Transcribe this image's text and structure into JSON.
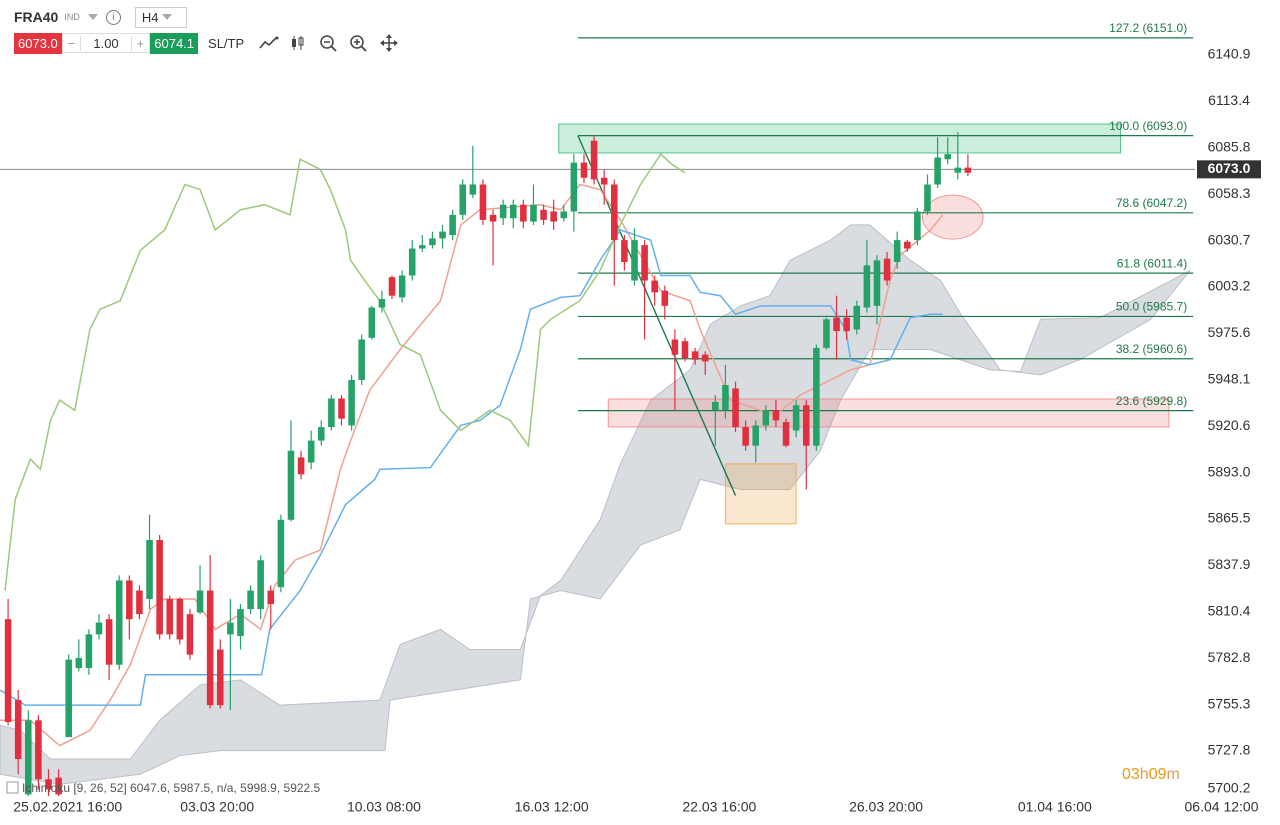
{
  "toolbar": {
    "symbol": "FRA40",
    "market": "IND",
    "timeframe": "H4",
    "sell": "6073.0",
    "volume": "1.00",
    "buy": "6074.1",
    "sltp": "SL/TP"
  },
  "legend": "Ichimoku [9, 26, 52] 6047.6, 5987.5, n/a, 5998.9, 5922.5",
  "timer": [
    "03",
    "h",
    "09",
    "m"
  ],
  "chart_data": {
    "type": "candlestick",
    "xlim": [
      -0.8,
      124.9
    ],
    "ylim": [
      5698.7,
      6173.5
    ],
    "xticks": [
      {
        "value": 5.9,
        "label": "25.02.2021 16:00"
      },
      {
        "value": 20.7,
        "label": "03.03 20:00"
      },
      {
        "value": 37.2,
        "label": "10.03 08:00"
      },
      {
        "value": 53.8,
        "label": "16.03 12:00"
      },
      {
        "value": 70.4,
        "label": "22.03 16:00"
      },
      {
        "value": 86.9,
        "label": "26.03 20:00"
      },
      {
        "value": 103.6,
        "label": "01.04 16:00"
      },
      {
        "value": 120.1,
        "label": "06.04 12:00"
      }
    ],
    "yticks": [
      5700.2,
      5727.8,
      5755.3,
      5782.8,
      5810.4,
      5837.9,
      5865.5,
      {
        "value": 5893,
        "label": "5893.0"
      },
      5920.6,
      5948.1,
      5975.6,
      6003.2,
      6030.7,
      6058.3,
      6085.8,
      6113.4,
      6140.9
    ],
    "up_color": "#26a269",
    "down_color": "#e0303f",
    "open": [
      5806,
      5758,
      5702,
      5746,
      5711,
      5712,
      5736,
      5777,
      5777,
      5797,
      5806,
      5779,
      5829,
      5823,
      5818,
      5853,
      5818,
      5818,
      5809,
      5810,
      5823,
      5788,
      5797,
      5796,
      5812,
      5812,
      5823,
      5825,
      5865,
      5902,
      5899,
      5912,
      5920,
      5937,
      5921,
      5948,
      5973,
      5991,
      6009,
      5997,
      6010,
      6026,
      6028,
      6032,
      6034,
      6046,
      6058,
      6064,
      6046,
      6044,
      6044,
      6052,
      6042,
      6049,
      6048,
      6044,
      6048,
      6077,
      6090,
      6068,
      6064,
      6031,
      6007,
      6028,
      6007,
      6001,
      5972,
      5971,
      5965,
      5963,
      5930,
      5930,
      5943,
      5920,
      5909,
      5921,
      5930,
      5923,
      5918,
      5933,
      5909,
      5967,
      5985,
      5985,
      5978,
      5991,
      5992,
      6020,
      6018,
      6030,
      6031,
      6048,
      6064,
      6079,
      6071,
      6074
    ],
    "high": [
      5818,
      5764,
      5752,
      5749,
      5717,
      5717,
      5785,
      5794,
      5800,
      5809,
      5809,
      5832,
      5832,
      5826,
      5868,
      5856,
      5820,
      5819,
      5812,
      5838,
      5844,
      5794,
      5818,
      5815,
      5826,
      5844,
      5826,
      5868,
      5924,
      5906,
      5918,
      5924,
      5939,
      5939,
      5951,
      5975,
      5992,
      6001,
      6010,
      6013,
      6031,
      6034,
      6036,
      6040,
      6049,
      6067,
      6087,
      6067,
      6049,
      6055,
      6055,
      6055,
      6064,
      6052,
      6055,
      6052,
      6082,
      6082,
      6093,
      6073,
      6067,
      6034,
      6038,
      6031,
      6010,
      6004,
      5978,
      5973,
      5967,
      5965,
      5939,
      5957,
      5947,
      5924,
      5924,
      5933,
      5936,
      5925,
      5936,
      5936,
      5969,
      5985,
      5998,
      5990,
      5995,
      6031,
      6022,
      6024,
      6036,
      6031,
      6050,
      6070,
      6092,
      6092,
      6095,
      6082
    ],
    "low": [
      5743,
      5714,
      5699,
      5705,
      5699,
      5699,
      5737,
      5775,
      5773,
      5794,
      5770,
      5776,
      5794,
      5806,
      5812,
      5794,
      5794,
      5791,
      5782,
      5809,
      5753,
      5753,
      5752,
      5788,
      5809,
      5806,
      5800,
      5822,
      5864,
      5889,
      5895,
      5909,
      5918,
      5921,
      5918,
      5945,
      5972,
      5988,
      5996,
      5994,
      6007,
      6024,
      6026,
      6026,
      6031,
      6043,
      6056,
      6040,
      6016,
      6040,
      6038,
      6038,
      6040,
      6040,
      6037,
      6042,
      6036,
      6065,
      6064,
      6052,
      6004,
      6013,
      6004,
      5972,
      5992,
      5984,
      5930,
      5959,
      5957,
      5951,
      5909,
      5925,
      5917,
      5906,
      5899,
      5918,
      5920,
      5908,
      5914,
      5883,
      5906,
      5966,
      5960,
      5972,
      5975,
      5988,
      5981,
      6004,
      6014,
      6024,
      6028,
      6046,
      6062,
      6076,
      6067,
      6069
    ],
    "close": [
      5745,
      5723,
      5746,
      5711,
      5705,
      5702,
      5782,
      5783,
      5797,
      5804,
      5779,
      5829,
      5806,
      5809,
      5853,
      5797,
      5797,
      5794,
      5785,
      5823,
      5755,
      5755,
      5804,
      5812,
      5823,
      5841,
      5815,
      5865,
      5906,
      5892,
      5912,
      5920,
      5937,
      5925,
      5948,
      5972,
      5991,
      5996,
      5998,
      6010,
      6026,
      6028,
      6032,
      6036,
      6046,
      6064,
      6064,
      6043,
      6042,
      6052,
      6052,
      6042,
      6052,
      6043,
      6042,
      6048,
      6077,
      6068,
      6067,
      6064,
      6031,
      6018,
      6031,
      6007,
      6000,
      5992,
      5963,
      5961,
      5960,
      5959,
      5935,
      5945,
      5920,
      5909,
      5921,
      5930,
      5924,
      5909,
      5933,
      5909,
      5967,
      5984,
      5977,
      5977,
      5992,
      6016,
      6019,
      6007,
      6031,
      6026,
      6048,
      6064,
      6080,
      6082,
      6074,
      6071
    ],
    "cloud": {
      "color": "#b9c0c8",
      "upper": {
        "x": [
          -0.8,
          1.2,
          4.2,
          12.1,
          15.0,
          19.0,
          23.0,
          26.9,
          36.8,
          38.8,
          42.8,
          45.7,
          50.7,
          52.7,
          54.7,
          58.6,
          60.6,
          63.6,
          67.5,
          69.5,
          72.5,
          75.4,
          77.4,
          81.4,
          83.4,
          85.3,
          89.3,
          92.3,
          94.3,
          98.2,
          102.2,
          106.1,
          113.1,
          117.0
        ],
        "values": [
          5743,
          5740,
          5723,
          5723,
          5746,
          5767,
          5770,
          5755,
          5758,
          5791,
          5800,
          5788,
          5788,
          5820,
          5829,
          5865,
          5898,
          5936,
          5954,
          5981,
          5992,
          5998,
          6019,
          6031,
          6040,
          6040,
          6019,
          6007,
          5987,
          5954,
          5951,
          5960,
          5984,
          6013
        ]
      },
      "lower": {
        "x": [
          -0.8,
          5.1,
          13.1,
          17.0,
          21.0,
          37.3,
          37.8,
          50.7,
          51.7,
          54.7,
          58.6,
          62.6,
          66.5,
          68.5,
          72.5,
          77.4,
          80.4,
          82.4,
          85.3,
          91.3,
          97.2,
          100.2,
          102.2,
          108.1,
          117.0
        ],
        "values": [
          5714,
          5708,
          5714,
          5725,
          5728,
          5728,
          5758,
          5770,
          5818,
          5823,
          5818,
          5850,
          5859,
          5889,
          5883,
          5883,
          5906,
          5936,
          5966,
          5966,
          5954,
          5953,
          5984,
          5985,
          6013
        ]
      }
    },
    "lines": [
      {
        "color": "#f0a090",
        "x": [
          -0.8,
          2.2,
          5.1,
          8.1,
          10.1,
          12.1,
          14.1,
          15.5,
          18.5,
          20.5,
          23.0,
          25.0,
          26.4,
          28.4,
          30.9,
          32.9,
          33.9,
          35.8,
          38.8,
          42.8,
          44.8,
          46.7,
          52.7,
          54.7,
          56.6,
          58.6,
          60.6,
          64.6,
          67.5,
          68.5,
          71.5,
          75.9,
          78.4,
          83.4,
          85.3,
          87.3,
          88.3,
          91.3,
          92.5
        ],
        "values": [
          5746,
          5746,
          5731,
          5740,
          5758,
          5779,
          5812,
          5818,
          5818,
          5800,
          5809,
          5800,
          5826,
          5841,
          5847,
          5895,
          5912,
          5942,
          5966,
          5995,
          6040,
          6049,
          6052,
          6049,
          6064,
          6061,
          6043,
          6001,
          5995,
          5978,
          5936,
          5927,
          5939,
          5954,
          5957,
          6007,
          6022,
          6037,
          6046
        ]
      },
      {
        "color": "#64b0ee",
        "x": [
          -0.8,
          1.7,
          13.1,
          13.6,
          25.1,
          25.9,
          28.9,
          30.9,
          33.4,
          36.3,
          36.8,
          41.8,
          44.8,
          46.7,
          48.7,
          50.7,
          51.7,
          54.7,
          56.6,
          58.6,
          60.6,
          63.6,
          64.6,
          67.5,
          68.5,
          70.5,
          72.0,
          74.5,
          81.4,
          82.9,
          83.4,
          85.3,
          87.3,
          89.3,
          91.3,
          92.5
        ],
        "values": [
          5764,
          5755,
          5755,
          5773,
          5773,
          5800,
          5823,
          5844,
          5874,
          5889,
          5895,
          5896,
          5921,
          5924,
          5933,
          5966,
          5990,
          5997,
          5998,
          6019,
          6037,
          6031,
          6010,
          6010,
          6000,
          5998,
          5987,
          5992,
          5992,
          5978,
          5960,
          5957,
          5960,
          5985,
          5987,
          5987
        ]
      },
      {
        "color": "#9cc97a",
        "x": [
          -0.3,
          0.7,
          2.2,
          3.2,
          4.2,
          5.1,
          6.6,
          8.1,
          9.1,
          11.1,
          13.1,
          15.5,
          17.5,
          19.0,
          20.5,
          23.0,
          25.4,
          27.9,
          28.9,
          30.9,
          31.9,
          33.4,
          33.9,
          35.3,
          36.8,
          38.8,
          40.8,
          42.8,
          44.8,
          47.7,
          49.7,
          51.5,
          52.7,
          53.7,
          56.6,
          58.6,
          60.6,
          62.6,
          64.6,
          65.7,
          67.0
        ],
        "values": [
          5823,
          5877,
          5901,
          5895,
          5924,
          5936,
          5930,
          5978,
          5990,
          5995,
          6025,
          6037,
          6064,
          6061,
          6037,
          6049,
          6052,
          6046,
          6079,
          6073,
          6061,
          6037,
          6019,
          6007,
          5995,
          5969,
          5963,
          5930,
          5918,
          5930,
          5924,
          5909,
          5978,
          5984,
          5995,
          6013,
          6040,
          6064,
          6082,
          6076,
          6071
        ]
      }
    ],
    "fib": {
      "color": "#1e7a4a",
      "x": [
        56.4,
        117.3
      ],
      "anchor": {
        "x": [
          56.4,
          72
        ],
        "values": [
          6093,
          5879.4
        ]
      },
      "levels": [
        {
          "label": "127.2 (6151.0)",
          "value": 6151
        },
        {
          "label": "100.0 (6093.0)",
          "value": 6093
        },
        {
          "label": "78.6 (6047.2)",
          "value": 6047.2
        },
        {
          "label": "61.8 (6011.4)",
          "value": 6011.4
        },
        {
          "label": "50.0 (5985.7)",
          "value": 5985.7
        },
        {
          "label": "38.2 (5960.6)",
          "value": 5960.6
        },
        {
          "label": "23.6 (5929.8)",
          "value": 5929.8
        }
      ]
    },
    "zones": [
      {
        "shape": "rect",
        "x": [
          54.5,
          110.1
        ],
        "y": [
          6082.7,
          6099.9
        ],
        "color": "#2eb872"
      },
      {
        "shape": "rect",
        "x": [
          59.4,
          114.9
        ],
        "y": [
          5920.1,
          5936.7
        ],
        "color": "#f08080"
      },
      {
        "shape": "rect",
        "x": [
          71,
          78
        ],
        "y": [
          5862.6,
          5898.2
        ],
        "color": "#f0a040"
      },
      {
        "shape": "ellipse",
        "x": [
          90.5,
          96.5
        ],
        "y": [
          6031.6,
          6057.7
        ],
        "color": "#f08080"
      }
    ],
    "last_price": {
      "value": 6073,
      "label": "6073.0",
      "color": "#333333"
    }
  }
}
